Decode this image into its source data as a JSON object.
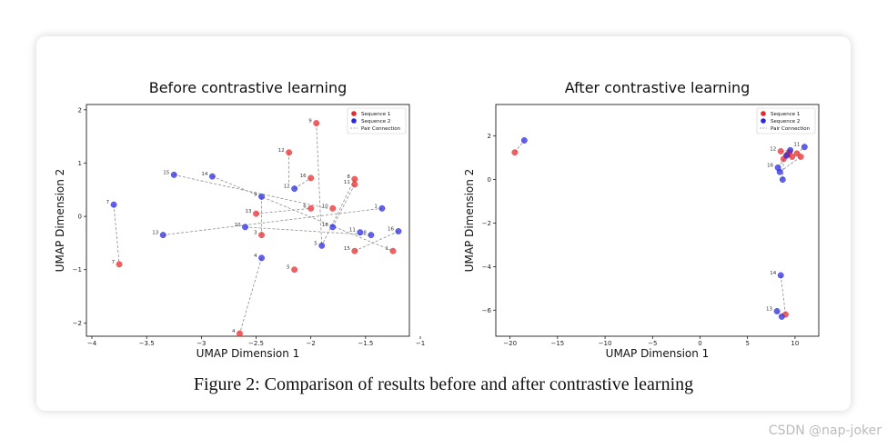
{
  "caption": "Figure 2: Comparison of results before and after contrastive learning",
  "watermark": "CSDN @nap-joker",
  "colors": {
    "seq1": "#e8282b",
    "seq2": "#2727e0",
    "pair": "#8c8c8c"
  },
  "chart_data": [
    {
      "type": "scatter",
      "title": "Before contrastive learning",
      "xlabel": "UMAP Dimension 1",
      "ylabel": "UMAP Dimension 2",
      "xlim": [
        -4.05,
        -1.1
      ],
      "ylim": [
        -2.25,
        2.1
      ],
      "xticks": [
        -4.0,
        -3.5,
        -3.0,
        -2.5,
        -2.0,
        -1.5,
        -1.0
      ],
      "yticks": [
        -2,
        -1,
        0,
        1,
        2
      ],
      "legend_position": "top-right",
      "legend": [
        "Sequence 1",
        "Sequence 2",
        "Pair Connection"
      ],
      "series": [
        {
          "name": "Sequence 1",
          "points": [
            {
              "label": "9",
              "x": -1.95,
              "y": 1.75
            },
            {
              "label": "12",
              "x": -2.2,
              "y": 1.2
            },
            {
              "label": "16",
              "x": -2.0,
              "y": 0.72
            },
            {
              "label": "8",
              "x": -1.6,
              "y": 0.7
            },
            {
              "label": "11",
              "x": -1.6,
              "y": 0.6
            },
            {
              "label": "13",
              "x": -2.5,
              "y": 0.05
            },
            {
              "label": "10",
              "x": -1.8,
              "y": 0.15
            },
            {
              "label": "6",
              "x": -2.0,
              "y": 0.15
            },
            {
              "label": "3",
              "x": -2.45,
              "y": -0.35
            },
            {
              "label": "15",
              "x": -1.6,
              "y": -0.65
            },
            {
              "label": "1",
              "x": -1.25,
              "y": -0.65
            },
            {
              "label": "5",
              "x": -2.15,
              "y": -1.0
            },
            {
              "label": "7",
              "x": -3.75,
              "y": -0.9
            },
            {
              "label": "4",
              "x": -2.65,
              "y": -2.2
            }
          ]
        },
        {
          "name": "Sequence 2",
          "points": [
            {
              "label": "15",
              "x": -3.25,
              "y": 0.78
            },
            {
              "label": "14",
              "x": -2.9,
              "y": 0.75
            },
            {
              "label": "12",
              "x": -2.15,
              "y": 0.52
            },
            {
              "label": "9",
              "x": -2.45,
              "y": 0.37
            },
            {
              "label": "7",
              "x": -3.8,
              "y": 0.22
            },
            {
              "label": "1",
              "x": -1.35,
              "y": 0.15
            },
            {
              "label": "4",
              "x": -2.45,
              "y": -0.78
            },
            {
              "label": "10",
              "x": -2.6,
              "y": -0.2
            },
            {
              "label": "13",
              "x": -3.35,
              "y": -0.35
            },
            {
              "label": "16",
              "x": -1.8,
              "y": -0.2
            },
            {
              "label": "11",
              "x": -1.55,
              "y": -0.3
            },
            {
              "label": "8",
              "x": -1.45,
              "y": -0.35
            },
            {
              "label": "5",
              "x": -1.9,
              "y": -0.55
            },
            {
              "label": "16",
              "x": -1.2,
              "y": -0.28
            }
          ]
        }
      ],
      "pairs": [
        [
          -1.95,
          1.75,
          -1.9,
          -0.55
        ],
        [
          -2.2,
          1.2,
          -2.2,
          0.6
        ],
        [
          -3.25,
          0.78,
          -1.85,
          0.15
        ],
        [
          -2.9,
          0.75,
          -1.25,
          -0.65
        ],
        [
          -2.15,
          0.52,
          -2.0,
          0.72
        ],
        [
          -2.45,
          0.37,
          -2.45,
          -0.35
        ],
        [
          -1.6,
          0.6,
          -1.8,
          -0.2
        ],
        [
          -2.6,
          -0.2,
          -1.45,
          -0.35
        ],
        [
          -3.35,
          -0.35,
          -1.35,
          0.15
        ],
        [
          -2.5,
          0.05,
          -2.0,
          0.15
        ],
        [
          -1.6,
          -0.65,
          -1.2,
          -0.28
        ],
        [
          -2.45,
          -0.78,
          -2.65,
          -2.2
        ],
        [
          -3.8,
          0.22,
          -3.75,
          -0.9
        ],
        [
          -1.6,
          0.7,
          -1.9,
          -0.55
        ]
      ]
    },
    {
      "type": "scatter",
      "title": "After contrastive learning",
      "xlabel": "UMAP Dimension 1",
      "ylabel": "UMAP Dimension 2",
      "xlim": [
        -21.5,
        12.5
      ],
      "ylim": [
        -7.2,
        3.45
      ],
      "xticks": [
        -20,
        -15,
        -10,
        -5,
        0,
        5,
        10
      ],
      "yticks": [
        -6,
        -4,
        -2,
        0,
        2
      ],
      "legend_position": "top-right",
      "legend": [
        "Sequence 1",
        "Sequence 2",
        "Pair Connection"
      ],
      "series": [
        {
          "name": "Sequence 1",
          "points": [
            {
              "label": "",
              "x": -19.5,
              "y": 1.25
            },
            {
              "label": "12",
              "x": 8.5,
              "y": 1.3
            },
            {
              "label": "",
              "x": 9.2,
              "y": 1.15
            },
            {
              "label": "",
              "x": 9.7,
              "y": 1.05
            },
            {
              "label": "",
              "x": 10.2,
              "y": 1.2
            },
            {
              "label": "",
              "x": 10.6,
              "y": 1.05
            },
            {
              "label": "",
              "x": 8.8,
              "y": 0.95
            },
            {
              "label": "",
              "x": 9.4,
              "y": 1.25
            },
            {
              "label": "",
              "x": 9.0,
              "y": -6.2
            }
          ]
        },
        {
          "name": "Sequence 2",
          "points": [
            {
              "label": "",
              "x": -18.5,
              "y": 1.8
            },
            {
              "label": "11",
              "x": 11.0,
              "y": 1.5
            },
            {
              "label": "16",
              "x": 8.2,
              "y": 0.55
            },
            {
              "label": "",
              "x": 8.4,
              "y": 0.35
            },
            {
              "label": "",
              "x": 8.7,
              "y": 0.0
            },
            {
              "label": "",
              "x": 9.1,
              "y": 1.1
            },
            {
              "label": "",
              "x": 9.5,
              "y": 1.35
            },
            {
              "label": "14",
              "x": 8.5,
              "y": -4.4
            },
            {
              "label": "13",
              "x": 8.1,
              "y": -6.05
            },
            {
              "label": "",
              "x": 8.6,
              "y": -6.3
            }
          ]
        }
      ],
      "pairs": [
        [
          -19.5,
          1.25,
          -18.5,
          1.8
        ],
        [
          8.5,
          1.3,
          9.5,
          1.35
        ],
        [
          9.2,
          1.15,
          8.2,
          0.55
        ],
        [
          10.2,
          1.2,
          11.0,
          1.5
        ],
        [
          8.8,
          0.95,
          8.7,
          0.0
        ],
        [
          9.7,
          1.05,
          9.1,
          1.1
        ],
        [
          8.5,
          -4.4,
          9.0,
          -6.2
        ],
        [
          8.1,
          -6.05,
          8.6,
          -6.3
        ],
        [
          8.4,
          0.35,
          10.6,
          1.05
        ]
      ]
    }
  ]
}
